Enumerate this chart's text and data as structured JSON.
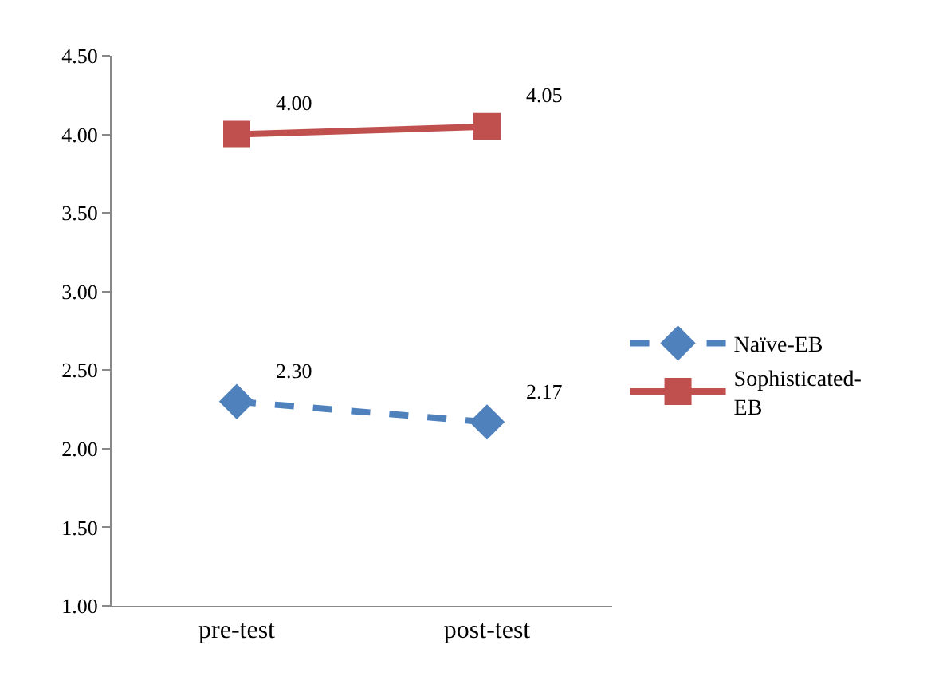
{
  "chart_data": {
    "type": "line",
    "categories": [
      "pre-test",
      "post-test"
    ],
    "series": [
      {
        "name": "Naïve-EB",
        "color": "#4f81bd",
        "values": [
          2.3,
          2.17
        ],
        "value_labels": [
          "2.30",
          "2.17"
        ],
        "marker": "diamond",
        "line_style": "dashed"
      },
      {
        "name": "Sophisticated-EB",
        "color": "#c0504d",
        "values": [
          4.0,
          4.05
        ],
        "value_labels": [
          "4.00",
          "4.05"
        ],
        "marker": "square",
        "line_style": "solid"
      }
    ],
    "ylim": [
      1,
      4.5
    ],
    "yticks": [
      {
        "value": 1,
        "label": "1.00"
      },
      {
        "value": 1.5,
        "label": "1.50"
      },
      {
        "value": 2,
        "label": "2.00"
      },
      {
        "value": 2.5,
        "label": "2.50"
      },
      {
        "value": 3,
        "label": "3.00"
      },
      {
        "value": 3.5,
        "label": "3.50"
      },
      {
        "value": 4,
        "label": "4.00"
      },
      {
        "value": 4.5,
        "label": "4.50"
      }
    ],
    "grid": false,
    "legend": "right"
  }
}
